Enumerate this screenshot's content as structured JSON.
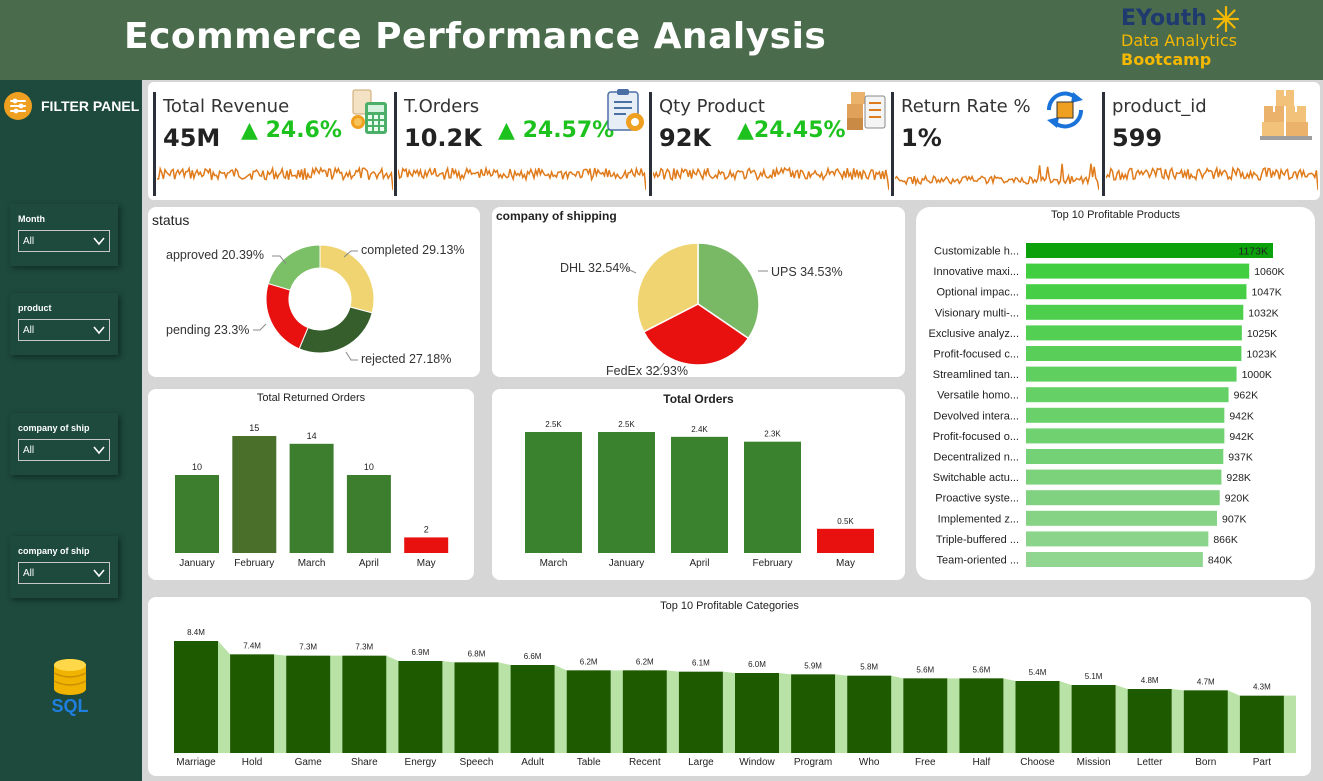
{
  "header": {
    "title": "Ecommerce Performance Analysis"
  },
  "brand": {
    "name": "EYouth",
    "line2": "Data Analytics",
    "line3": "Bootcamp"
  },
  "sidebar": {
    "panel_label": "FILTER PANEL",
    "filters": [
      {
        "label": "Month",
        "value": "All"
      },
      {
        "label": "product",
        "value": "All"
      },
      {
        "label": "company of ship",
        "value": "All"
      },
      {
        "label": "company of ship",
        "value": "All"
      }
    ],
    "logo_text": "SQL"
  },
  "kpis": [
    {
      "label": "Total Revenue",
      "value": "45M",
      "change": "24.6%",
      "icon": "revenue-icon"
    },
    {
      "label": "T.Orders",
      "value": "10.2K",
      "change": "24.57%",
      "icon": "orders-icon"
    },
    {
      "label": "Qty Product",
      "value": "92K",
      "change": "24.45%",
      "icon": "boxes-icon"
    },
    {
      "label": "Return Rate %",
      "value": "1%",
      "change": "",
      "icon": "return-icon"
    },
    {
      "label": "product_id",
      "value": "599",
      "change": "",
      "icon": "pallet-icon"
    }
  ],
  "colors": {
    "header": "#4a6b4c",
    "sidebar": "#1d4a3c",
    "up": "#1ec21e",
    "spark": "#e07b1c",
    "darkGreen": "#1e5b00",
    "red": "#e8110f"
  },
  "chart_data": [
    {
      "id": "status",
      "type": "pie",
      "title": "status",
      "labels": [
        "completed",
        "rejected",
        "pending",
        "approved"
      ],
      "values": [
        29.13,
        27.18,
        23.3,
        20.39
      ],
      "value_labels": [
        "completed 29.13%",
        "rejected 27.18%",
        "pending 23.3%",
        "approved 20.39%"
      ],
      "colors": [
        "#efd471",
        "#355e2c",
        "#e8110f",
        "#7bbf66"
      ],
      "donut": true
    },
    {
      "id": "shipping",
      "type": "pie",
      "title": "company of shipping",
      "labels": [
        "UPS",
        "FedEx",
        "DHL"
      ],
      "values": [
        34.53,
        32.93,
        32.54
      ],
      "value_labels": [
        "UPS 34.53%",
        "FedEx 32.93%",
        "DHL 32.54%"
      ],
      "colors": [
        "#79b865",
        "#e8110f",
        "#efd471"
      ]
    },
    {
      "id": "returned",
      "type": "bar",
      "title": "Total Returned Orders",
      "categories": [
        "January",
        "February",
        "March",
        "April",
        "May"
      ],
      "values": [
        10,
        15,
        14,
        10,
        2
      ],
      "value_labels": [
        "10",
        "15",
        "14",
        "10",
        "2"
      ],
      "colors": [
        "#3d7e2e",
        "#4a6f2b",
        "#3d7e2e",
        "#3d7e2e",
        "#e8110f"
      ],
      "ylim": [
        0,
        15
      ]
    },
    {
      "id": "orders",
      "type": "bar",
      "title": "Total Orders",
      "categories": [
        "March",
        "January",
        "April",
        "February",
        "May"
      ],
      "values": [
        2.5,
        2.5,
        2.4,
        2.3,
        0.5
      ],
      "value_labels": [
        "2.5K",
        "2.5K",
        "2.4K",
        "2.3K",
        "0.5K"
      ],
      "colors": [
        "#3a822e",
        "#3a822e",
        "#3a822e",
        "#3a822e",
        "#e8110f"
      ],
      "ylim": [
        0,
        2.5
      ]
    },
    {
      "id": "products",
      "type": "bar",
      "orientation": "horizontal",
      "title": "Top 10 Profitable Products",
      "categories": [
        "Customizable h...",
        "Innovative maxi...",
        "Optional impac...",
        "Visionary multi-...",
        "Exclusive analyz...",
        "Profit-focused c...",
        "Streamlined tan...",
        "Versatile homo...",
        "Devolved intera...",
        "Profit-focused o...",
        "Decentralized n...",
        "Switchable actu...",
        "Proactive syste...",
        "Implemented z...",
        "Triple-buffered ...",
        "Team-oriented ..."
      ],
      "values": [
        1173,
        1060,
        1047,
        1032,
        1025,
        1023,
        1000,
        962,
        942,
        942,
        937,
        928,
        920,
        907,
        866,
        840
      ],
      "value_labels": [
        "1173K",
        "1060K",
        "1047K",
        "1032K",
        "1025K",
        "1023K",
        "1000K",
        "962K",
        "942K",
        "942K",
        "937K",
        "928K",
        "920K",
        "907K",
        "866K",
        "840K"
      ],
      "xlim": [
        0,
        1173
      ]
    },
    {
      "id": "categories",
      "type": "bar",
      "title": "Top 10 Profitable Categories",
      "categories": [
        "Marriage",
        "Hold",
        "Game",
        "Share",
        "Energy",
        "Speech",
        "Adult",
        "Table",
        "Recent",
        "Large",
        "Window",
        "Program",
        "Who",
        "Free",
        "Half",
        "Choose",
        "Mission",
        "Letter",
        "Born",
        "Part"
      ],
      "values": [
        8.4,
        7.4,
        7.3,
        7.3,
        6.9,
        6.8,
        6.6,
        6.2,
        6.2,
        6.1,
        6.0,
        5.9,
        5.8,
        5.6,
        5.6,
        5.4,
        5.1,
        4.8,
        4.7,
        4.3
      ],
      "value_labels": [
        "8.4M",
        "7.4M",
        "7.3M",
        "7.3M",
        "6.9M",
        "6.8M",
        "6.6M",
        "6.2M",
        "6.2M",
        "6.1M",
        "6.0M",
        "5.9M",
        "5.8M",
        "5.6M",
        "5.6M",
        "5.4M",
        "5.1M",
        "4.8M",
        "4.7M",
        "4.3M"
      ],
      "ylim": [
        0,
        8.4
      ]
    }
  ]
}
